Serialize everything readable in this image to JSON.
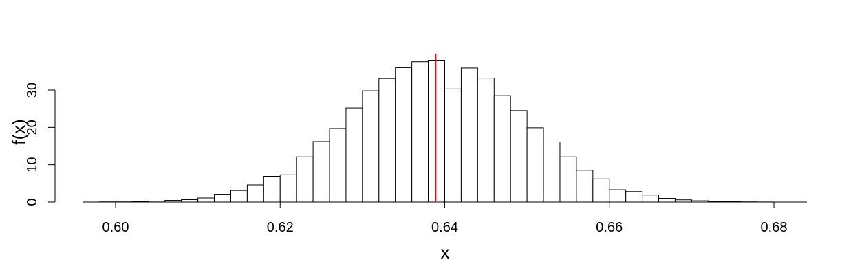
{
  "chart_data": {
    "type": "bar",
    "subtype": "histogram",
    "title": "",
    "xlabel": "x",
    "ylabel": "f(x)",
    "xlim": [
      0.598,
      0.68
    ],
    "ylim": [
      0,
      38
    ],
    "x_ticks": [
      0.6,
      0.62,
      0.64,
      0.66,
      0.68
    ],
    "x_tick_labels": [
      "0.60",
      "0.62",
      "0.64",
      "0.66",
      "0.68"
    ],
    "y_ticks": [
      0,
      10,
      20,
      30
    ],
    "y_tick_labels": [
      "0",
      "10",
      "20",
      "30"
    ],
    "bin_start": 0.598,
    "bin_width": 0.002,
    "values": [
      0.05,
      0.05,
      0.1,
      0.25,
      0.45,
      0.65,
      1.1,
      2.1,
      3.1,
      4.6,
      6.9,
      7.3,
      12.1,
      16.2,
      19.7,
      25.2,
      29.8,
      33.1,
      36.0,
      37.6,
      38.0,
      30.3,
      35.9,
      33.2,
      28.5,
      24.5,
      19.9,
      16.1,
      12.1,
      8.5,
      6.2,
      3.3,
      2.8,
      1.9,
      1.0,
      0.6,
      0.35,
      0.15,
      0.1,
      0.05,
      0.02
    ],
    "vline": {
      "x": 0.6389,
      "color": "#ff0000"
    },
    "grid": false,
    "legend": "none"
  }
}
